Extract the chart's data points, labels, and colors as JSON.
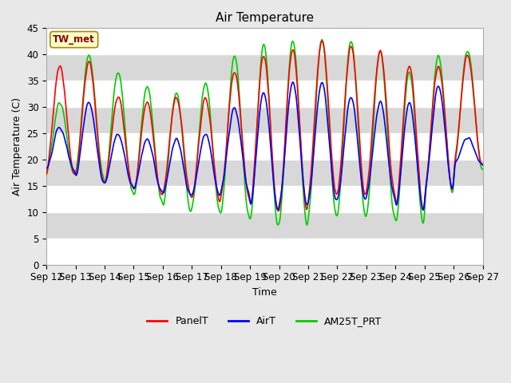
{
  "title": "Air Temperature",
  "ylabel": "Air Temperature (C)",
  "xlabel": "Time",
  "annotation": "TW_met",
  "ylim": [
    0,
    45
  ],
  "yticks": [
    0,
    5,
    10,
    15,
    20,
    25,
    30,
    35,
    40,
    45
  ],
  "x_tick_labels": [
    "Sep 12",
    "Sep 13",
    "Sep 14",
    "Sep 15",
    "Sep 16",
    "Sep 17",
    "Sep 18",
    "Sep 19",
    "Sep 20",
    "Sep 21",
    "Sep 22",
    "Sep 23",
    "Sep 24",
    "Sep 25",
    "Sep 26",
    "Sep 27"
  ],
  "legend_labels": [
    "PanelT",
    "AirT",
    "AM25T_PRT"
  ],
  "line_colors": [
    "red",
    "blue",
    "#00cc00"
  ],
  "fig_facecolor": "#e8e8e8",
  "plot_facecolor": "#e8e8e8",
  "grid_color": "white",
  "n_days": 15,
  "title_fontsize": 11,
  "label_fontsize": 9,
  "tick_fontsize": 8.5
}
